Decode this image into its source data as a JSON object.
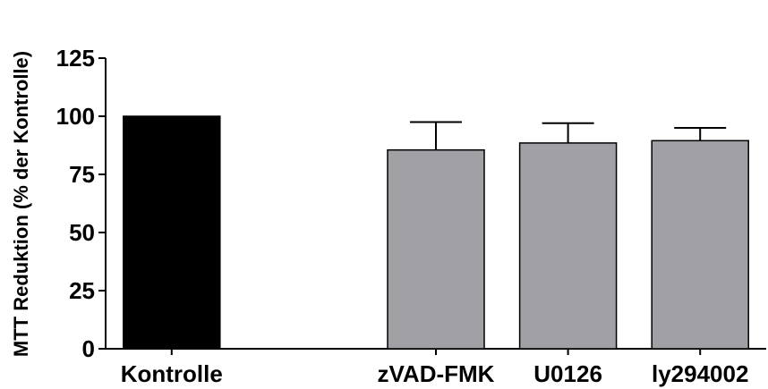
{
  "chart_data": {
    "type": "bar",
    "categories": [
      "Kontrolle",
      "",
      "zVAD-FMK",
      "U0126",
      "ly294002"
    ],
    "values": [
      100,
      null,
      85.5,
      88.5,
      89.5
    ],
    "errors": [
      0,
      null,
      12,
      8.5,
      5.5
    ],
    "bar_colors": [
      "#000000",
      null,
      "#a0a0a5",
      "#a0a0a5",
      "#a0a0a5"
    ],
    "ylabel": "MTT Reduktion (% der Kontrolle)",
    "xlabel": "",
    "ylim": [
      0,
      125
    ],
    "yticks": [
      0,
      25,
      50,
      75,
      100,
      125
    ],
    "grid": false
  }
}
